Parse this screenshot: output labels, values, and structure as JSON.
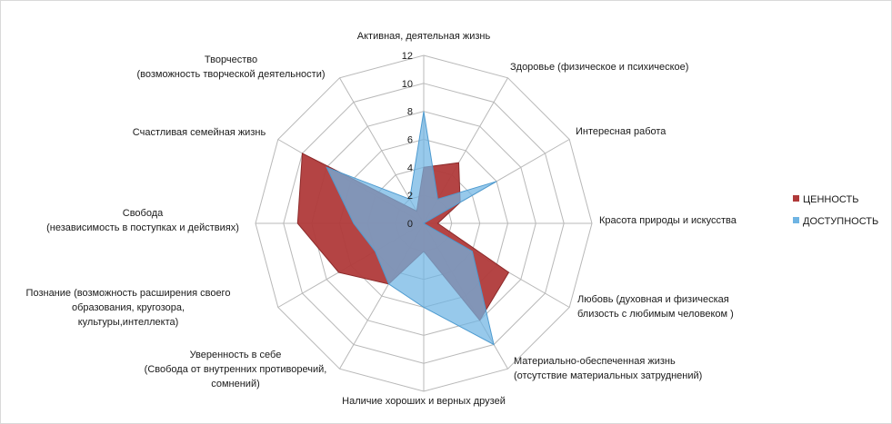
{
  "chart_data": {
    "type": "radar",
    "title": "",
    "categories": [
      [
        "Активная,  деятельная жизнь"
      ],
      [
        "Здоровье (физическое и психическое)"
      ],
      [
        "Интересная работа"
      ],
      [
        "Красота природы и искусства"
      ],
      [
        "Любовь (духовная и физическая",
        "близость с любимым человеком )"
      ],
      [
        "Материально-обеспеченная жизнь",
        "(отсутствие материальных затруднений)"
      ],
      [
        "Наличие хороших и верных друзей"
      ],
      [
        "Уверенность в себе",
        "(Свобода от внутренних противоречий,",
        "сомнений)"
      ],
      [
        "Познание (возможность расширения своего",
        "образования, кругозора,",
        "культуры,интеллекта)"
      ],
      [
        "Свобода",
        "(независимость в поступках и действиях)"
      ],
      [
        "Счастливая семейная жизнь"
      ],
      [
        "Творчество",
        "(возможность творческой деятельности)"
      ]
    ],
    "rlim": [
      0,
      12
    ],
    "ticks": [
      0,
      2,
      4,
      6,
      8,
      10,
      12
    ],
    "tick_labels": [
      "0",
      "2",
      "4",
      "6",
      "8",
      "10",
      "12"
    ],
    "grid": true,
    "legend_position": "right",
    "series": [
      {
        "name": "ЦЕННОСТЬ",
        "color": "#b03a3a",
        "values": [
          4,
          5,
          3,
          1,
          7,
          8,
          2,
          5,
          7,
          9,
          10,
          1
        ]
      },
      {
        "name": "ДОСТУПНОСТЬ",
        "color": "#6fb4e3",
        "values": [
          8,
          2,
          6,
          0,
          4,
          10,
          6,
          5,
          4,
          5,
          8,
          2
        ]
      }
    ]
  }
}
